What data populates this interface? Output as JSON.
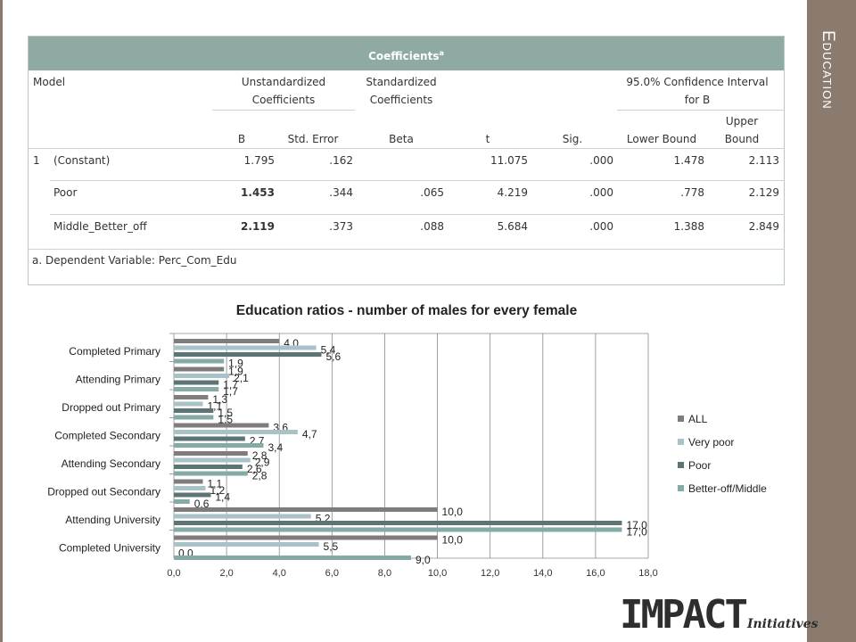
{
  "sidebar": {
    "title": "Education"
  },
  "coefficients_table": {
    "title": "Coefficients",
    "title_sup": "a",
    "headers": {
      "model": "Model",
      "unstandardized_l1": "Unstandardized",
      "unstandardized_l2": "Coefficients",
      "standardized_l1": "Standardized",
      "standardized_l2": "Coefficients",
      "ci_l1": "95.0% Confidence Interval",
      "ci_l2": "for B",
      "b": "B",
      "std_error": "Std. Error",
      "beta": "Beta",
      "t": "t",
      "sig": "Sig.",
      "lower": "Lower Bound",
      "upper_l1": "Upper",
      "upper_l2": "Bound"
    },
    "model_number": "1",
    "rows": [
      {
        "name": "(Constant)",
        "b": "1.795",
        "se": ".162",
        "beta": "",
        "t": "11.075",
        "sig": ".000",
        "lower": "1.478",
        "upper": "2.113"
      },
      {
        "name": "Poor",
        "b": "1.453",
        "se": ".344",
        "beta": ".065",
        "t": "4.219",
        "sig": ".000",
        "lower": ".778",
        "upper": "2.129"
      },
      {
        "name": "Middle_Better_off",
        "b": "2.119",
        "se": ".373",
        "beta": ".088",
        "t": "5.684",
        "sig": ".000",
        "lower": "1.388",
        "upper": "2.849"
      }
    ],
    "footnote": "a. Dependent Variable: Perc_Com_Edu"
  },
  "chart_data": {
    "type": "bar",
    "orientation": "horizontal",
    "title": "Education ratios - number of males for every female",
    "categories": [
      "Completed Primary",
      "Attending Primary",
      "Dropped out Primary",
      "Completed Secondary",
      "Attending Secondary",
      "Dropped out Secondary",
      "Attending University",
      "Completed University"
    ],
    "series": [
      {
        "name": "ALL",
        "color": "#807c7c",
        "values": [
          4.0,
          1.9,
          1.3,
          3.6,
          2.8,
          1.1,
          10.0,
          10.0
        ],
        "labels": [
          "4,0",
          "1,9",
          "1,3",
          "3,6",
          "2,8",
          "1,1",
          "10,0",
          "10,0"
        ]
      },
      {
        "name": "Very poor",
        "color": "#a9c2c7",
        "values": [
          5.4,
          2.1,
          1.1,
          4.7,
          2.9,
          1.2,
          5.2,
          5.5
        ],
        "labels": [
          "5,4",
          "2,1",
          "1,1",
          "4,7",
          "2,9",
          "1,2",
          "5,2",
          "5,5"
        ]
      },
      {
        "name": "Poor",
        "color": "#5d7475",
        "values": [
          5.6,
          1.7,
          1.5,
          2.7,
          2.6,
          1.4,
          17.0,
          0.0
        ],
        "labels": [
          "5,6",
          "1,7",
          "1,5",
          "2,7",
          "2,6",
          "1,4",
          "17,0",
          "0,0"
        ]
      },
      {
        "name": "Better-off/Middle",
        "color": "#86aaa6",
        "values": [
          1.9,
          1.7,
          1.5,
          3.4,
          2.8,
          0.6,
          17.0,
          9.0
        ],
        "labels": [
          "1,9",
          "1,7",
          "1,5",
          "3,4",
          "2,8",
          "0,6",
          "17,0",
          "9,0"
        ]
      }
    ],
    "xlim": [
      0,
      18
    ],
    "x_ticks": [
      "0,0",
      "2,0",
      "4,0",
      "6,0",
      "8,0",
      "10,0",
      "12,0",
      "14,0",
      "16,0",
      "18,0"
    ],
    "grid": true,
    "legend_position": "right"
  },
  "logo": {
    "main": "IMPACT",
    "sub": "Initiatives"
  }
}
